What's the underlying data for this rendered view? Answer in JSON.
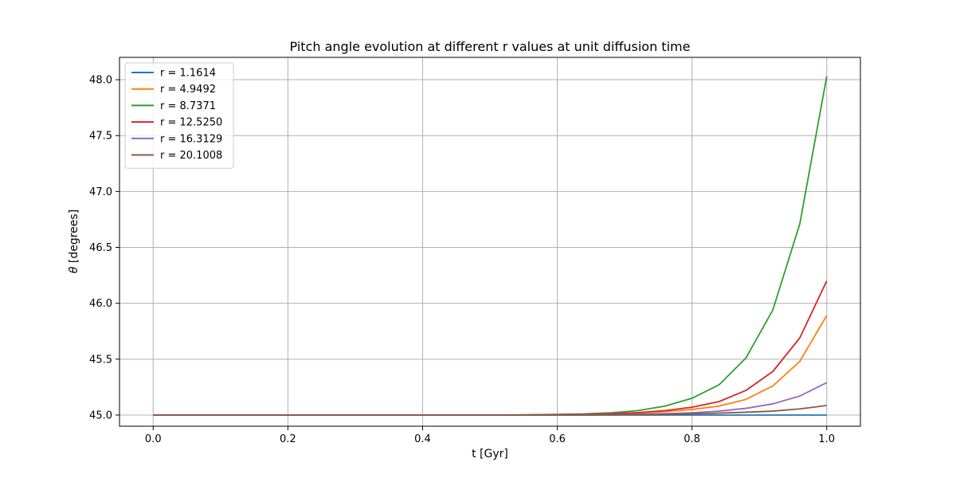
{
  "chart_data": {
    "type": "line",
    "title": "Pitch angle evolution at different r values at unit diffusion time",
    "xlabel": "t [Gyr]",
    "ylabel_symbol": "θ",
    "ylabel_unit": "[degrees]",
    "xlim": [
      -0.05,
      1.05
    ],
    "ylim": [
      44.9,
      48.2
    ],
    "xticks": [
      0.0,
      0.2,
      0.4,
      0.6,
      0.8,
      1.0
    ],
    "xtick_labels": [
      "0.0",
      "0.2",
      "0.4",
      "0.6",
      "0.8",
      "1.0"
    ],
    "yticks": [
      45.0,
      45.5,
      46.0,
      46.5,
      47.0,
      47.5,
      48.0
    ],
    "ytick_labels": [
      "45.0",
      "45.5",
      "46.0",
      "46.5",
      "47.0",
      "47.5",
      "48.0"
    ],
    "grid": true,
    "legend_position": "top-left",
    "x": [
      0.0,
      0.04,
      0.08,
      0.12,
      0.16,
      0.2,
      0.24,
      0.28,
      0.32,
      0.36,
      0.4,
      0.44,
      0.48,
      0.52,
      0.56,
      0.6,
      0.64,
      0.68,
      0.72,
      0.76,
      0.8,
      0.84,
      0.88,
      0.92,
      0.96,
      1.0
    ],
    "series": [
      {
        "name": "r = 1.1614",
        "color": "#1f77b4",
        "values": [
          45.0,
          45.0,
          45.0,
          45.0,
          45.0,
          45.0,
          45.0,
          45.0,
          45.0,
          45.0,
          45.0,
          45.0,
          45.0,
          45.0,
          45.0,
          45.0,
          45.0,
          45.0,
          45.0,
          45.0,
          45.0,
          45.0,
          45.0,
          45.0,
          45.0,
          45.0
        ]
      },
      {
        "name": "r = 4.9492",
        "color": "#ff7f0e",
        "values": [
          45.0,
          45.0,
          45.0,
          45.0,
          45.0,
          45.0,
          45.0,
          45.0,
          45.0,
          45.0,
          45.0,
          45.0,
          45.0,
          45.0,
          45.0,
          45.003,
          45.006,
          45.01,
          45.018,
          45.03,
          45.05,
          45.08,
          45.14,
          45.26,
          45.48,
          45.89
        ]
      },
      {
        "name": "r = 8.7371",
        "color": "#2ca02c",
        "values": [
          45.0,
          45.0,
          45.0,
          45.0,
          45.0,
          45.0,
          45.0,
          45.0,
          45.0,
          45.0,
          45.0,
          45.0,
          45.0,
          45.0,
          45.003,
          45.006,
          45.01,
          45.02,
          45.04,
          45.08,
          45.15,
          45.27,
          45.51,
          45.94,
          46.71,
          48.03
        ]
      },
      {
        "name": "r = 12.5250",
        "color": "#d62728",
        "values": [
          45.0,
          45.0,
          45.0,
          45.0,
          45.0,
          45.0,
          45.0,
          45.0,
          45.0,
          45.0,
          45.0,
          45.0,
          45.0,
          45.0,
          45.0,
          45.003,
          45.006,
          45.012,
          45.022,
          45.04,
          45.07,
          45.12,
          45.22,
          45.39,
          45.69,
          46.2
        ]
      },
      {
        "name": "r = 16.3129",
        "color": "#9467bd",
        "values": [
          45.0,
          45.0,
          45.0,
          45.0,
          45.0,
          45.0,
          45.0,
          45.0,
          45.0,
          45.0,
          45.0,
          45.0,
          45.0,
          45.0,
          45.0,
          45.0,
          45.002,
          45.004,
          45.007,
          45.012,
          45.02,
          45.035,
          45.06,
          45.1,
          45.17,
          45.29
        ]
      },
      {
        "name": "r = 20.1008",
        "color": "#8c564b",
        "values": [
          45.0,
          45.0,
          45.0,
          45.0,
          45.0,
          45.0,
          45.0,
          45.0,
          45.0,
          45.0,
          45.0,
          45.0,
          45.0,
          45.0,
          45.0,
          45.0,
          45.0,
          45.002,
          45.004,
          45.007,
          45.011,
          45.017,
          45.025,
          45.035,
          45.055,
          45.085
        ]
      }
    ]
  }
}
